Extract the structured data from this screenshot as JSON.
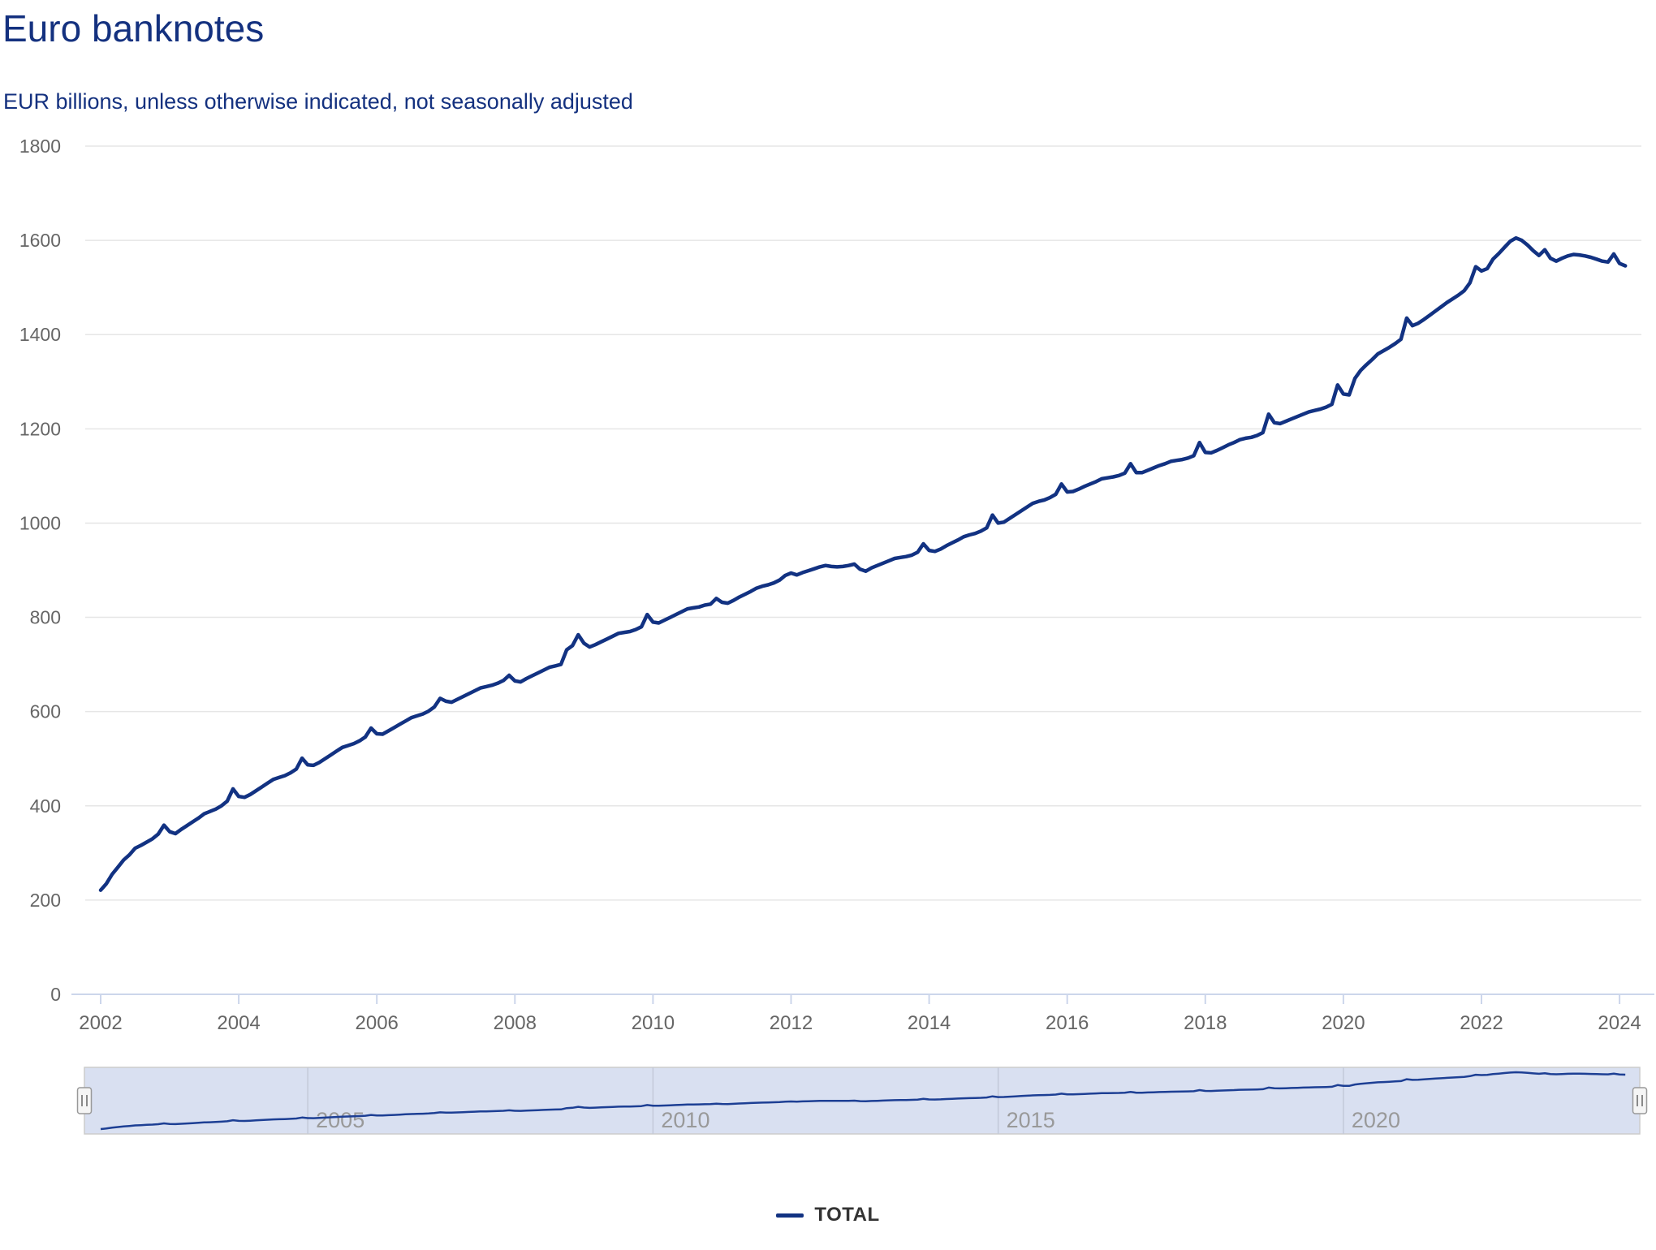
{
  "header": {
    "title": "Euro banknotes",
    "subtitle": "EUR billions, unless otherwise indicated, not seasonally adjusted"
  },
  "legend": {
    "series_label": "TOTAL"
  },
  "colors": {
    "title_text": "#14317f",
    "subtitle_text": "#14317f",
    "series_line": "#123282",
    "navigator_line": "#1d3f94",
    "grid_line": "#e6e6e6",
    "axis_line": "#ccd6eb",
    "tick_label": "#666666",
    "navigator_fill": "#d9e0f1",
    "navigator_border": "#cccccc",
    "navigator_grid": "#c3c9d9",
    "navigator_label": "#999999",
    "handle_fill": "#f5f5f5",
    "handle_border": "#999999",
    "handle_bars": "#666666",
    "legend_text": "#333333"
  },
  "navigator": {
    "label_years": [
      2005,
      2010,
      2015,
      2020
    ]
  },
  "chart_data": {
    "type": "line",
    "title": "Euro banknotes",
    "subtitle": "EUR billions, unless otherwise indicated, not seasonally adjusted",
    "xlabel": "",
    "ylabel": "",
    "ylim": [
      0,
      1800
    ],
    "yticks": [
      0,
      200,
      400,
      600,
      800,
      1000,
      1200,
      1400,
      1600,
      1800
    ],
    "xticks": [
      2002,
      2004,
      2006,
      2008,
      2010,
      2012,
      2014,
      2016,
      2018,
      2020,
      2022,
      2024
    ],
    "grid": "horizontal",
    "legend_position": "bottom-center",
    "series": [
      {
        "name": "TOTAL",
        "frequency": "monthly",
        "start_year": 2002,
        "start_month": 1,
        "values": [
          221,
          235,
          255,
          270,
          285,
          296,
          310,
          316,
          323,
          330,
          340,
          359,
          345,
          341,
          350,
          358,
          366,
          374,
          383,
          388,
          393,
          400,
          410,
          436,
          420,
          418,
          424,
          432,
          440,
          448,
          456,
          460,
          464,
          470,
          478,
          501,
          487,
          486,
          492,
          500,
          508,
          516,
          524,
          528,
          532,
          538,
          546,
          565,
          553,
          552,
          559,
          566,
          573,
          580,
          587,
          591,
          595,
          601,
          610,
          628,
          622,
          620,
          626,
          632,
          638,
          644,
          650,
          653,
          656,
          660,
          666,
          677,
          665,
          663,
          670,
          676,
          682,
          688,
          694,
          697,
          700,
          731,
          740,
          763,
          745,
          737,
          742,
          748,
          754,
          760,
          766,
          768,
          770,
          774,
          780,
          806,
          790,
          788,
          794,
          800,
          806,
          812,
          818,
          820,
          822,
          826,
          828,
          840,
          832,
          830,
          836,
          843,
          849,
          855,
          862,
          866,
          869,
          873,
          879,
          889,
          894,
          890,
          895,
          899,
          903,
          907,
          910,
          908,
          907,
          908,
          910,
          913,
          902,
          898,
          905,
          910,
          915,
          920,
          925,
          927,
          929,
          932,
          938,
          956,
          942,
          940,
          945,
          952,
          958,
          964,
          971,
          975,
          978,
          983,
          990,
          1017,
          1000,
          1002,
          1010,
          1018,
          1026,
          1034,
          1042,
          1046,
          1049,
          1054,
          1061,
          1083,
          1066,
          1067,
          1072,
          1078,
          1083,
          1088,
          1094,
          1096,
          1098,
          1101,
          1106,
          1126,
          1107,
          1107,
          1112,
          1117,
          1122,
          1126,
          1131,
          1133,
          1135,
          1138,
          1143,
          1171,
          1150,
          1149,
          1154,
          1160,
          1166,
          1171,
          1177,
          1180,
          1182,
          1186,
          1192,
          1231,
          1213,
          1211,
          1216,
          1221,
          1226,
          1231,
          1236,
          1239,
          1242,
          1246,
          1252,
          1293,
          1274,
          1272,
          1307,
          1324,
          1336,
          1347,
          1359,
          1366,
          1373,
          1381,
          1390,
          1435,
          1419,
          1424,
          1432,
          1441,
          1450,
          1459,
          1468,
          1476,
          1484,
          1493,
          1510,
          1544,
          1535,
          1540,
          1560,
          1572,
          1585,
          1598,
          1605,
          1600,
          1590,
          1578,
          1568,
          1580,
          1562,
          1556,
          1562,
          1567,
          1570,
          1569,
          1567,
          1564,
          1560,
          1556,
          1554,
          1571,
          1551,
          1546
        ]
      }
    ]
  }
}
